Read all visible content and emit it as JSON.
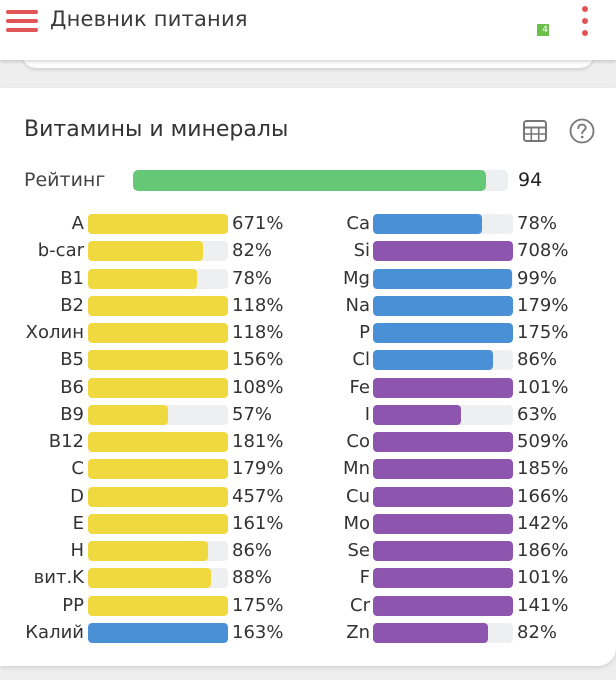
{
  "header": {
    "title": "Дневник питания",
    "badge": "4"
  },
  "card": {
    "title": "Витамины и минералы",
    "rating": {
      "label": "Рейтинг",
      "value": 94,
      "value_text": "94"
    }
  },
  "colors": {
    "vitamin": "#f0d93e",
    "mineral_macro": "#4a90d6",
    "mineral_trace": "#8e55ae",
    "rating": "#64c877",
    "track": "#eeeff1",
    "accent": "#e05555"
  },
  "nutrients_left": [
    {
      "name": "A",
      "value": 671,
      "text": "671%",
      "group": "vitamin"
    },
    {
      "name": "b-car",
      "value": 82,
      "text": "82%",
      "group": "vitamin"
    },
    {
      "name": "B1",
      "value": 78,
      "text": "78%",
      "group": "vitamin"
    },
    {
      "name": "B2",
      "value": 118,
      "text": "118%",
      "group": "vitamin"
    },
    {
      "name": "Холин",
      "value": 118,
      "text": "118%",
      "group": "vitamin"
    },
    {
      "name": "B5",
      "value": 156,
      "text": "156%",
      "group": "vitamin"
    },
    {
      "name": "B6",
      "value": 108,
      "text": "108%",
      "group": "vitamin"
    },
    {
      "name": "B9",
      "value": 57,
      "text": "57%",
      "group": "vitamin"
    },
    {
      "name": "B12",
      "value": 181,
      "text": "181%",
      "group": "vitamin"
    },
    {
      "name": "C",
      "value": 179,
      "text": "179%",
      "group": "vitamin"
    },
    {
      "name": "D",
      "value": 457,
      "text": "457%",
      "group": "vitamin"
    },
    {
      "name": "E",
      "value": 161,
      "text": "161%",
      "group": "vitamin"
    },
    {
      "name": "H",
      "value": 86,
      "text": "86%",
      "group": "vitamin"
    },
    {
      "name": "вит.K",
      "value": 88,
      "text": "88%",
      "group": "vitamin"
    },
    {
      "name": "PP",
      "value": 175,
      "text": "175%",
      "group": "vitamin"
    },
    {
      "name": "Калий",
      "value": 163,
      "text": "163%",
      "group": "mineral_macro"
    }
  ],
  "nutrients_right": [
    {
      "name": "Ca",
      "value": 78,
      "text": "78%",
      "group": "mineral_macro"
    },
    {
      "name": "Si",
      "value": 708,
      "text": "708%",
      "group": "mineral_trace"
    },
    {
      "name": "Mg",
      "value": 99,
      "text": "99%",
      "group": "mineral_macro"
    },
    {
      "name": "Na",
      "value": 179,
      "text": "179%",
      "group": "mineral_macro"
    },
    {
      "name": "P",
      "value": 175,
      "text": "175%",
      "group": "mineral_macro"
    },
    {
      "name": "Cl",
      "value": 86,
      "text": "86%",
      "group": "mineral_macro"
    },
    {
      "name": "Fe",
      "value": 101,
      "text": "101%",
      "group": "mineral_trace"
    },
    {
      "name": "I",
      "value": 63,
      "text": "63%",
      "group": "mineral_trace"
    },
    {
      "name": "Co",
      "value": 509,
      "text": "509%",
      "group": "mineral_trace"
    },
    {
      "name": "Mn",
      "value": 185,
      "text": "185%",
      "group": "mineral_trace"
    },
    {
      "name": "Cu",
      "value": 166,
      "text": "166%",
      "group": "mineral_trace"
    },
    {
      "name": "Mo",
      "value": 142,
      "text": "142%",
      "group": "mineral_trace"
    },
    {
      "name": "Se",
      "value": 186,
      "text": "186%",
      "group": "mineral_trace"
    },
    {
      "name": "F",
      "value": 101,
      "text": "101%",
      "group": "mineral_trace"
    },
    {
      "name": "Cr",
      "value": 141,
      "text": "141%",
      "group": "mineral_trace"
    },
    {
      "name": "Zn",
      "value": 82,
      "text": "82%",
      "group": "mineral_trace"
    }
  ]
}
